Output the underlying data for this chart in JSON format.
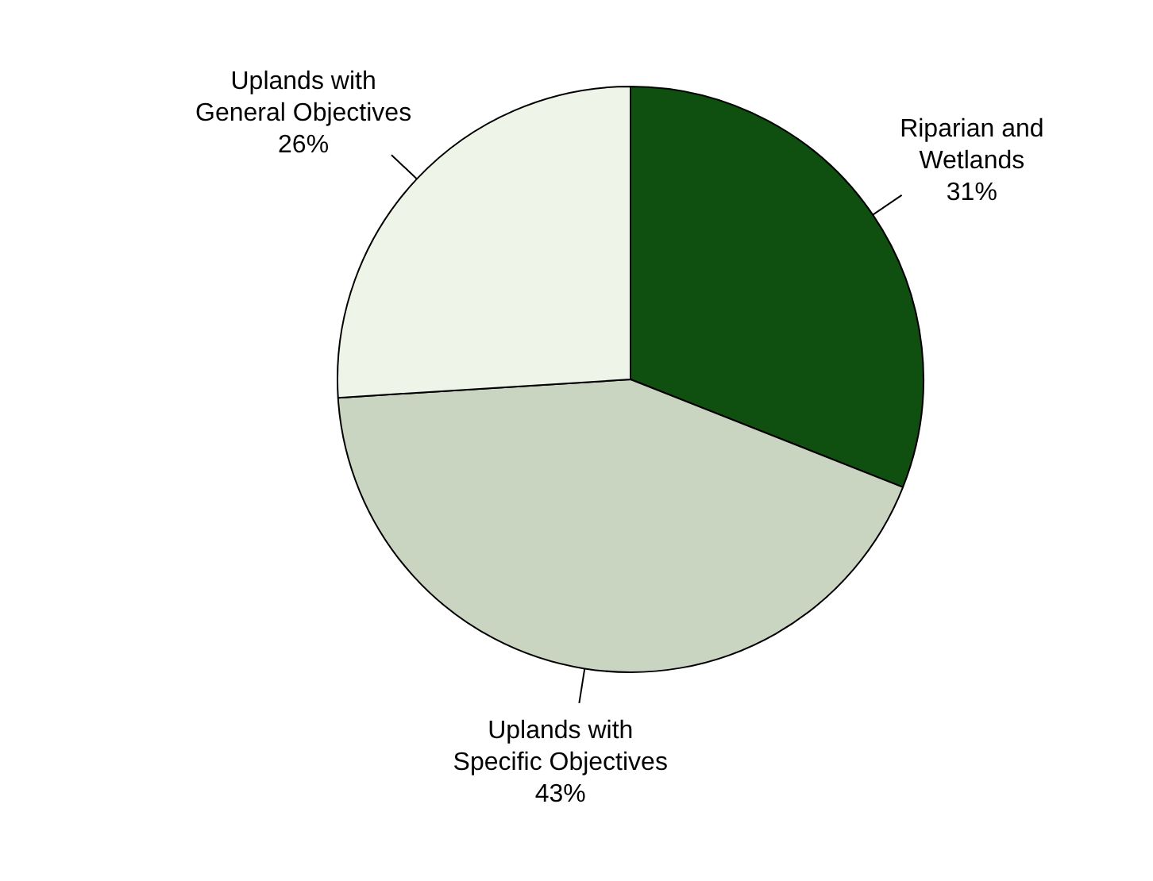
{
  "chart_data": {
    "type": "pie",
    "categories": [
      "Riparian and Wetlands",
      "Uplands with Specific Objectives",
      "Uplands with General Objectives"
    ],
    "values": [
      31,
      43,
      26
    ],
    "value_labels": [
      "31%",
      "43%",
      "26%"
    ],
    "colors": [
      "#0f4f0f",
      "#c9d5c1",
      "#eef4e8"
    ],
    "legend": false
  }
}
